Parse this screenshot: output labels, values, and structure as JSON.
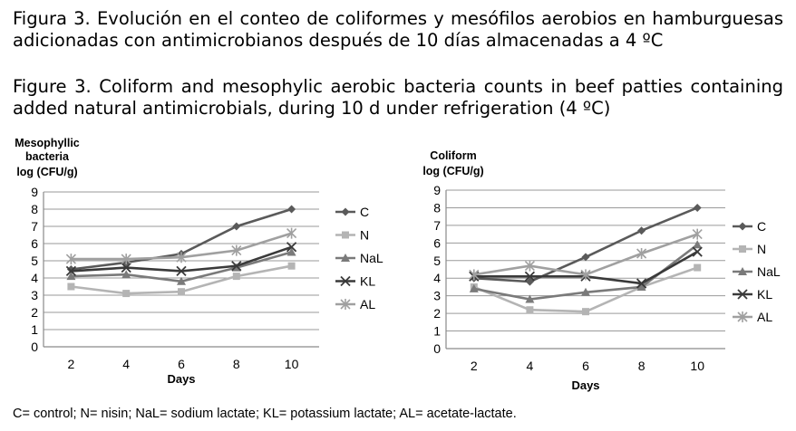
{
  "captions": {
    "spanish": "Figura 3. Evolución en el conteo de coliformes y mesófilos aerobios en hamburguesas adicionadas con antimicrobianos después de 10 días almacenadas a 4 ºC",
    "english": "Figure 3. Coliform and mesophylic aerobic bacteria counts in beef patties containing added natural antimicrobials, during 10 d under refrigeration (4 ºC)"
  },
  "footnote": "C= control; N= nisin; NaL= sodium lactate; KL= potassium lactate; AL= acetate-lactate.",
  "series_colors": {
    "C": "#5a5a5a",
    "N": "#b4b4b4",
    "NaL": "#7a7a7a",
    "KL": "#3a3a3a",
    "AL": "#a0a0a0"
  },
  "chart_data": [
    {
      "type": "line",
      "title": "Mesophyllic bacteria log (CFU/g)",
      "ylabel_lines": [
        "Mesophyllic",
        "bacteria",
        "log (CFU/g)"
      ],
      "xlabel": "Days",
      "x": [
        2,
        4,
        6,
        8,
        10
      ],
      "ylim": [
        0,
        9
      ],
      "yticks": [
        0,
        1,
        2,
        3,
        4,
        5,
        6,
        7,
        8,
        9
      ],
      "grid": true,
      "legend": "right",
      "series": [
        {
          "name": "C",
          "marker": "diamond",
          "values": [
            4.5,
            4.9,
            5.4,
            7.0,
            8.0
          ]
        },
        {
          "name": "N",
          "marker": "square",
          "values": [
            3.5,
            3.1,
            3.2,
            4.1,
            4.7
          ]
        },
        {
          "name": "NaL",
          "marker": "triangle",
          "values": [
            4.1,
            4.2,
            3.8,
            4.6,
            5.5
          ]
        },
        {
          "name": "KL",
          "marker": "x",
          "values": [
            4.4,
            4.6,
            4.4,
            4.7,
            5.8
          ]
        },
        {
          "name": "AL",
          "marker": "asterisk",
          "values": [
            5.1,
            5.1,
            5.2,
            5.6,
            6.6
          ]
        }
      ]
    },
    {
      "type": "line",
      "title": "Coliform log (CFU/g)",
      "ylabel_lines": [
        "Coliform",
        "log (CFU/g)"
      ],
      "xlabel": "Days",
      "x": [
        2,
        4,
        6,
        8,
        10
      ],
      "ylim": [
        0,
        9
      ],
      "yticks": [
        0,
        1,
        2,
        3,
        4,
        5,
        6,
        7,
        8,
        9
      ],
      "grid": true,
      "legend": "right",
      "series": [
        {
          "name": "C",
          "marker": "diamond",
          "values": [
            4.0,
            3.8,
            5.2,
            6.7,
            8.0
          ]
        },
        {
          "name": "N",
          "marker": "square",
          "values": [
            3.5,
            2.2,
            2.1,
            3.5,
            4.6
          ]
        },
        {
          "name": "NaL",
          "marker": "triangle",
          "values": [
            3.4,
            2.8,
            3.2,
            3.5,
            5.9
          ]
        },
        {
          "name": "KL",
          "marker": "x",
          "values": [
            4.1,
            4.1,
            4.1,
            3.7,
            5.5
          ]
        },
        {
          "name": "AL",
          "marker": "asterisk",
          "values": [
            4.2,
            4.7,
            4.2,
            5.4,
            6.5
          ]
        }
      ]
    }
  ]
}
